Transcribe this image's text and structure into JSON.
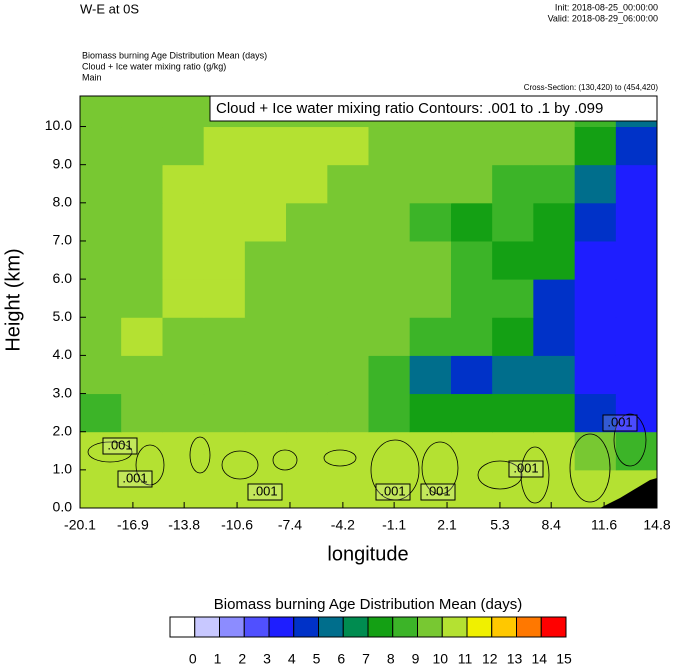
{
  "chart_data": {
    "type": "heatmap",
    "title": "W-E at 0S",
    "init": "Init: 2018-08-25_00:00:00",
    "valid": "Valid: 2018-08-29_06:00:00",
    "fields": [
      "Biomass burning Age Distribution Mean   (days)",
      "Cloud + Ice water mixing ratio   (g/kg)",
      "Main"
    ],
    "cross_section": "Cross-Section: (130,420) to (454,420)",
    "contour_title": "Cloud + Ice water mixing ratio Contours: .001 to .1 by .099",
    "contour_labels": [
      ".001",
      ".001",
      ".001",
      ".001",
      ".001",
      ".001",
      ".001"
    ],
    "xlabel": "longitude",
    "ylabel": "Height (km)",
    "xlim": [
      -20.1,
      14.8
    ],
    "ylim": [
      0,
      10.8
    ],
    "xticks": [
      -20.1,
      -16.9,
      -13.8,
      -10.6,
      -7.4,
      -4.2,
      -1.1,
      2.1,
      5.3,
      8.4,
      11.6,
      14.8
    ],
    "yticks": [
      {
        "value": 0,
        "label": "0.0"
      },
      {
        "value": 1,
        "label": "1.0"
      },
      {
        "value": 2,
        "label": "2.0"
      },
      {
        "value": 3,
        "label": "3.0"
      },
      {
        "value": 4,
        "label": "4.0"
      },
      {
        "value": 5,
        "label": "5.0"
      },
      {
        "value": 6,
        "label": "6.0"
      },
      {
        "value": 7,
        "label": "7.0"
      },
      {
        "value": 8,
        "label": "8.0"
      },
      {
        "value": 9,
        "label": "9.0"
      },
      {
        "value": 10,
        "label": "10.0"
      }
    ],
    "x_edges": [
      -20.1,
      -17.61,
      -15.11,
      -12.62,
      -10.13,
      -7.64,
      -5.14,
      -2.65,
      -0.16,
      2.34,
      4.83,
      7.32,
      9.82,
      12.31,
      14.8
    ],
    "y_edges": [
      0,
      1,
      2,
      3,
      4,
      5,
      6,
      7,
      8,
      9,
      10,
      10.8
    ],
    "z": [
      [
        10.5,
        10.5,
        10.5,
        10.5,
        10.5,
        10.5,
        10.5,
        10.5,
        10.5,
        10.5,
        10.5,
        10.5,
        10.5,
        10.5
      ],
      [
        10.5,
        10.5,
        10.5,
        10.5,
        10.5,
        10.5,
        10.5,
        10.5,
        10.5,
        10.5,
        10.5,
        10.5,
        9.5,
        8.5
      ],
      [
        8.5,
        9.5,
        9.5,
        9.5,
        9.5,
        9.5,
        9.5,
        8.5,
        7.5,
        7.5,
        7.5,
        7.5,
        4.5,
        3.5
      ],
      [
        9.5,
        9.5,
        9.5,
        9.5,
        9.5,
        9.5,
        9.5,
        8.5,
        5.5,
        4.5,
        5.5,
        5.5,
        3.5,
        3.5
      ],
      [
        9.5,
        10.5,
        9.5,
        9.5,
        9.5,
        9.5,
        9.5,
        9.5,
        8.5,
        8.5,
        7.5,
        4.5,
        3.5,
        3.5
      ],
      [
        9.5,
        9.5,
        10.5,
        10.5,
        9.5,
        9.5,
        9.5,
        9.5,
        9.5,
        8.5,
        8.5,
        4.5,
        3.5,
        3.5
      ],
      [
        9.5,
        9.5,
        10.5,
        10.5,
        9.5,
        9.5,
        9.5,
        9.5,
        9.5,
        8.5,
        7.5,
        7.5,
        3.5,
        3.5
      ],
      [
        9.5,
        9.5,
        10.5,
        10.5,
        10.5,
        9.5,
        9.5,
        9.5,
        8.5,
        7.5,
        8.5,
        7.5,
        4.5,
        3.5
      ],
      [
        9.5,
        9.5,
        10.5,
        10.5,
        10.5,
        10.5,
        9.5,
        9.5,
        9.5,
        9.5,
        8.5,
        8.5,
        5.5,
        3.5
      ],
      [
        9.5,
        9.5,
        9.5,
        10.5,
        10.5,
        10.5,
        10.5,
        9.5,
        9.5,
        9.5,
        9.5,
        9.5,
        7.5,
        4.5
      ],
      [
        9.5,
        9.5,
        9.5,
        9.5,
        9.5,
        9.5,
        9.5,
        9.5,
        9.5,
        9.5,
        9.5,
        9.5,
        8.5,
        5.5
      ]
    ],
    "colorbar": {
      "title": "Biomass burning Age Distribution Mean  (days)",
      "levels": [
        0,
        1,
        2,
        3,
        4,
        5,
        6,
        7,
        8,
        9,
        10,
        11,
        12,
        13,
        14,
        15
      ],
      "colors": [
        "#ffffff",
        "#c8c8ff",
        "#8c8cff",
        "#5050ff",
        "#1e1eff",
        "#0032c8",
        "#006e8c",
        "#008c50",
        "#14a014",
        "#3cb428",
        "#78c832",
        "#b4e132",
        "#f0f000",
        "#ffc800",
        "#ff7800",
        "#ff0000"
      ]
    }
  }
}
